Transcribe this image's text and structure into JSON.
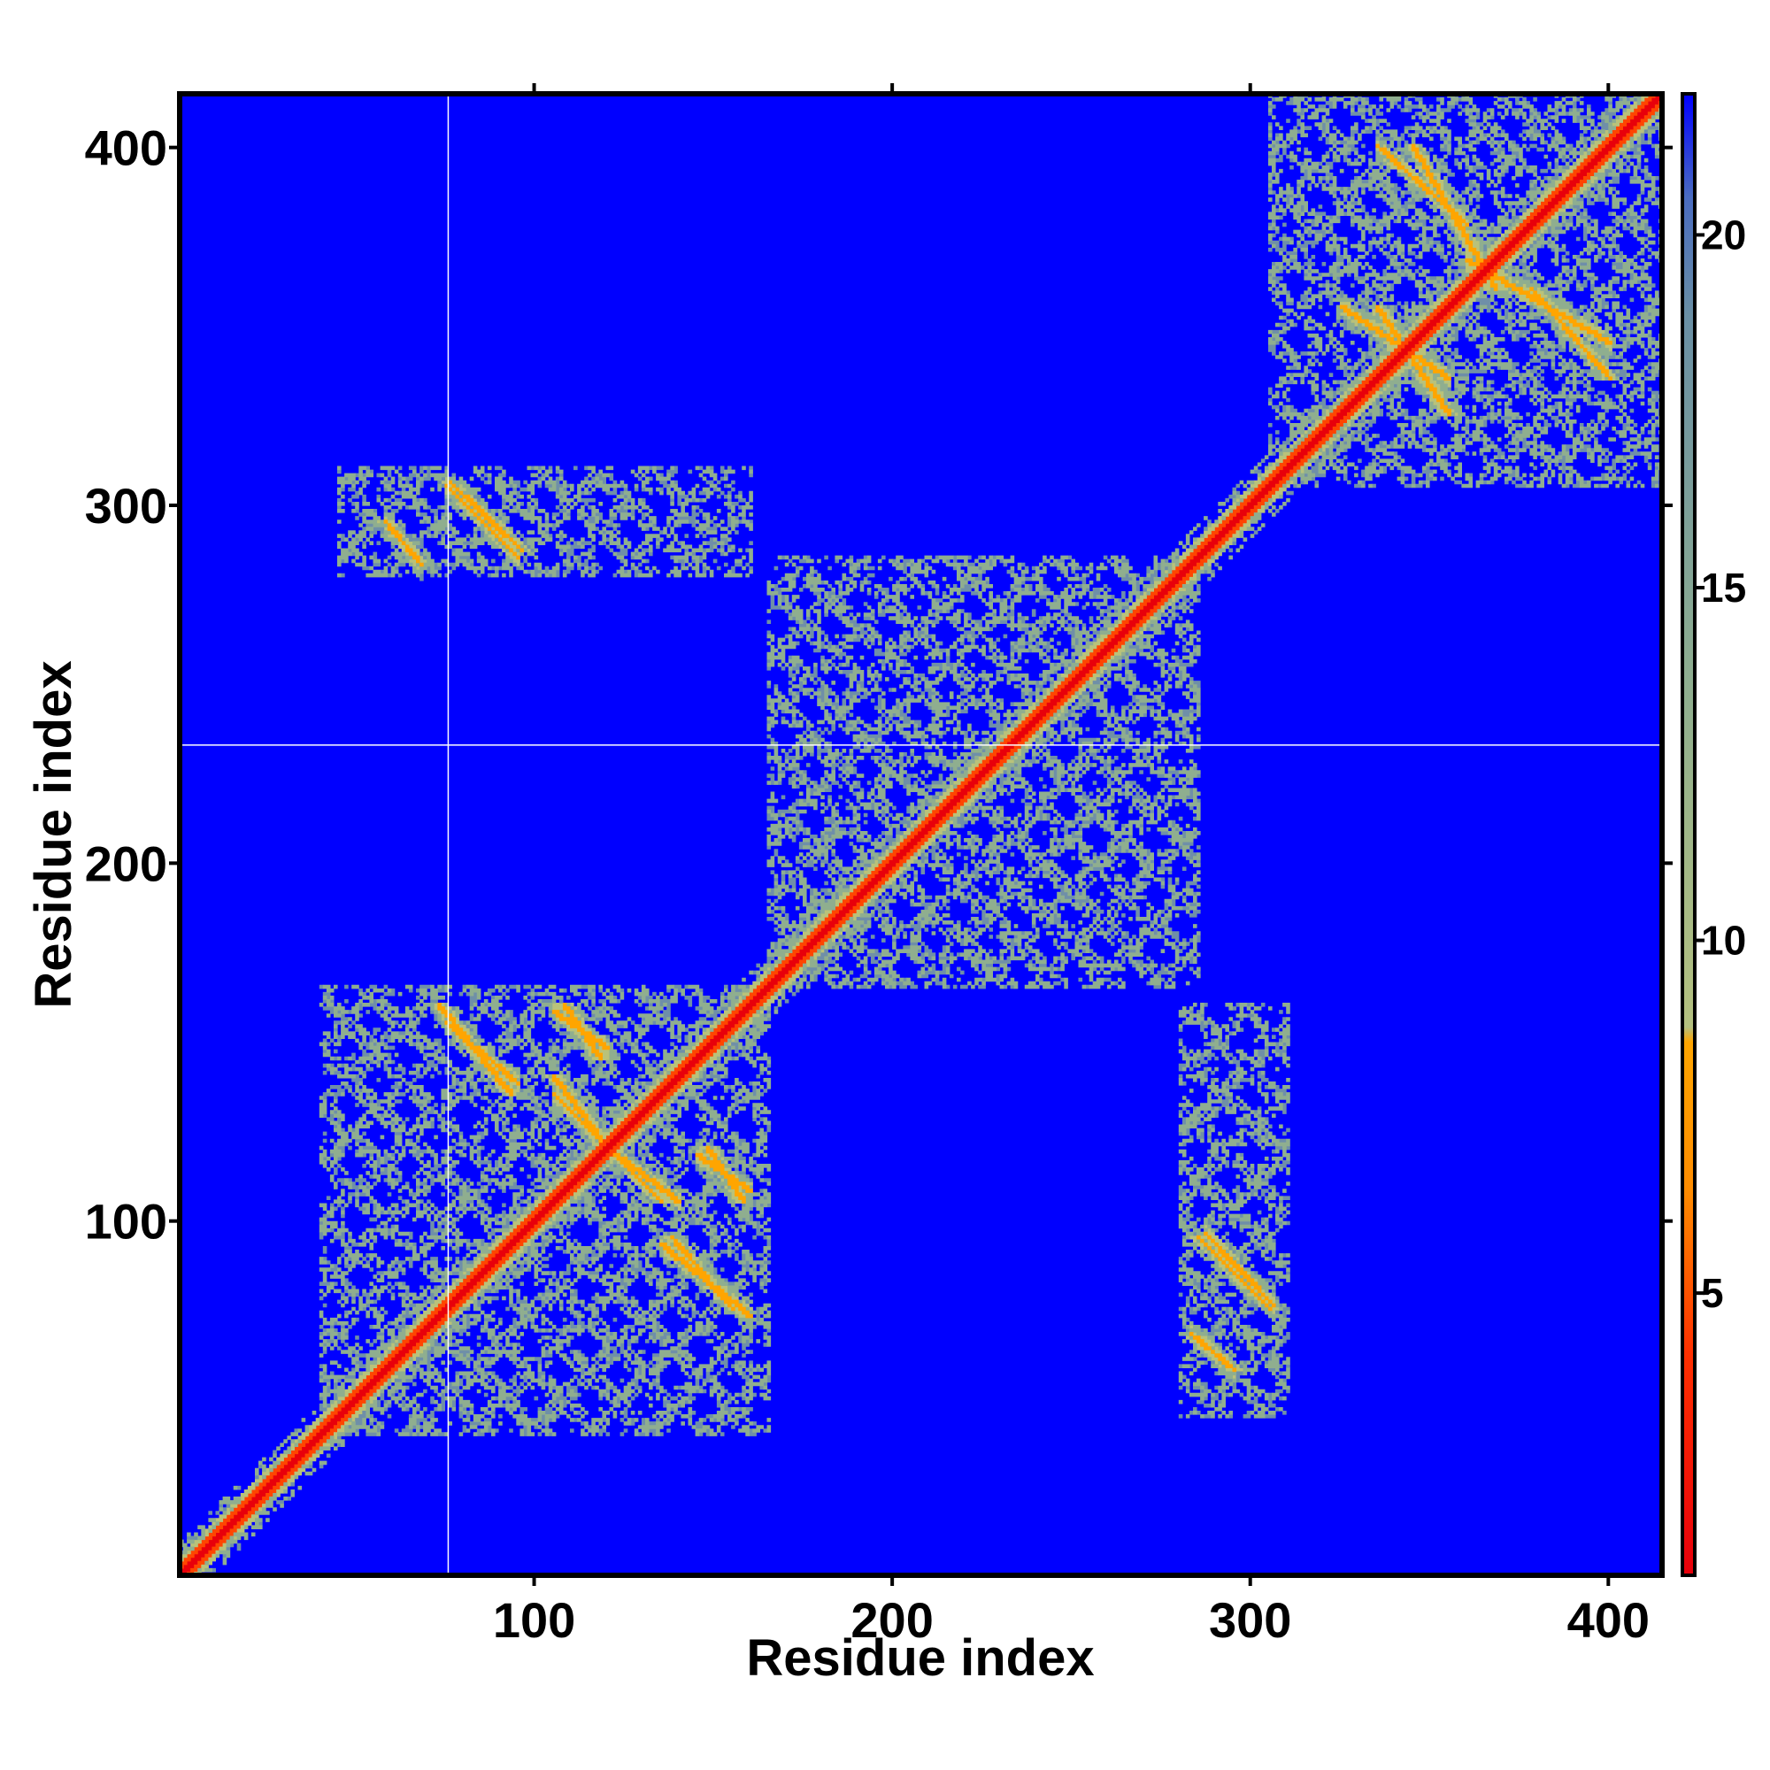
{
  "chart_data": {
    "type": "heatmap",
    "title": "",
    "xlabel": "Residue index",
    "ylabel": "Residue index",
    "xlim": [
      1,
      415
    ],
    "ylim": [
      1,
      415
    ],
    "x_ticks": [
      100,
      200,
      300,
      400
    ],
    "y_ticks": [
      100,
      200,
      300,
      400
    ],
    "x_tick_labels": [
      "100",
      "200",
      "300",
      "400"
    ],
    "y_tick_labels": [
      "100",
      "200",
      "300",
      "400"
    ],
    "colorbar": {
      "range": [
        1,
        22
      ],
      "ticks": [
        5,
        10,
        15,
        20
      ],
      "tick_labels": [
        "5",
        "10",
        "15",
        "20"
      ],
      "colors": {
        "low": "#e8000b",
        "mid_low": "#ff8c00",
        "mid": "#8fbc8f",
        "high": "#5f7fa8",
        "background": "#0000ff"
      }
    },
    "grid": false,
    "value_meaning": "Pairwise distance between residues; low (red) along diagonal and contact bands, background (blue) above cutoff",
    "reference_lines": {
      "x": 76,
      "y": 233
    },
    "contact_regions": [
      {
        "x": [
          40,
          165
        ],
        "y": [
          45,
          165
        ],
        "level": 10
      },
      {
        "x": [
          165,
          285
        ],
        "y": [
          170,
          285
        ],
        "level": 10
      },
      {
        "x": [
          310,
          415
        ],
        "y": [
          305,
          415
        ],
        "level": 10
      },
      {
        "x": [
          45,
          160
        ],
        "y": [
          280,
          305
        ],
        "level": 10
      },
      {
        "x": [
          280,
          310
        ],
        "y": [
          45,
          160
        ],
        "level": 10
      }
    ],
    "contact_bands": [
      {
        "x": [
          58,
          68
        ],
        "y": [
          295,
          283
        ],
        "level": 5
      },
      {
        "x": [
          75,
          95
        ],
        "y": [
          305,
          285
        ],
        "level": 5
      },
      {
        "x": [
          283,
          295
        ],
        "y": [
          68,
          58
        ],
        "level": 5
      },
      {
        "x": [
          287,
          306
        ],
        "y": [
          96,
          76
        ],
        "level": 5
      },
      {
        "x": [
          75,
          95
        ],
        "y": [
          155,
          138
        ],
        "level": 5
      },
      {
        "x": [
          105,
          120
        ],
        "y": [
          158,
          148
        ],
        "level": 5
      },
      {
        "x": [
          105,
          125
        ],
        "y": [
          135,
          115
        ],
        "level": 5
      },
      {
        "x": [
          120,
          140
        ],
        "y": [
          120,
          105
        ],
        "level": 5
      },
      {
        "x": [
          145,
          160
        ],
        "y": [
          118,
          108
        ],
        "level": 5
      },
      {
        "x": [
          135,
          160
        ],
        "y": [
          93,
          73
        ],
        "level": 5
      },
      {
        "x": [
          335,
          360
        ],
        "y": [
          400,
          378
        ],
        "level": 5
      },
      {
        "x": [
          360,
          400
        ],
        "y": [
          368,
          345
        ],
        "level": 5
      },
      {
        "x": [
          325,
          355
        ],
        "y": [
          355,
          335
        ],
        "level": 5
      }
    ]
  }
}
